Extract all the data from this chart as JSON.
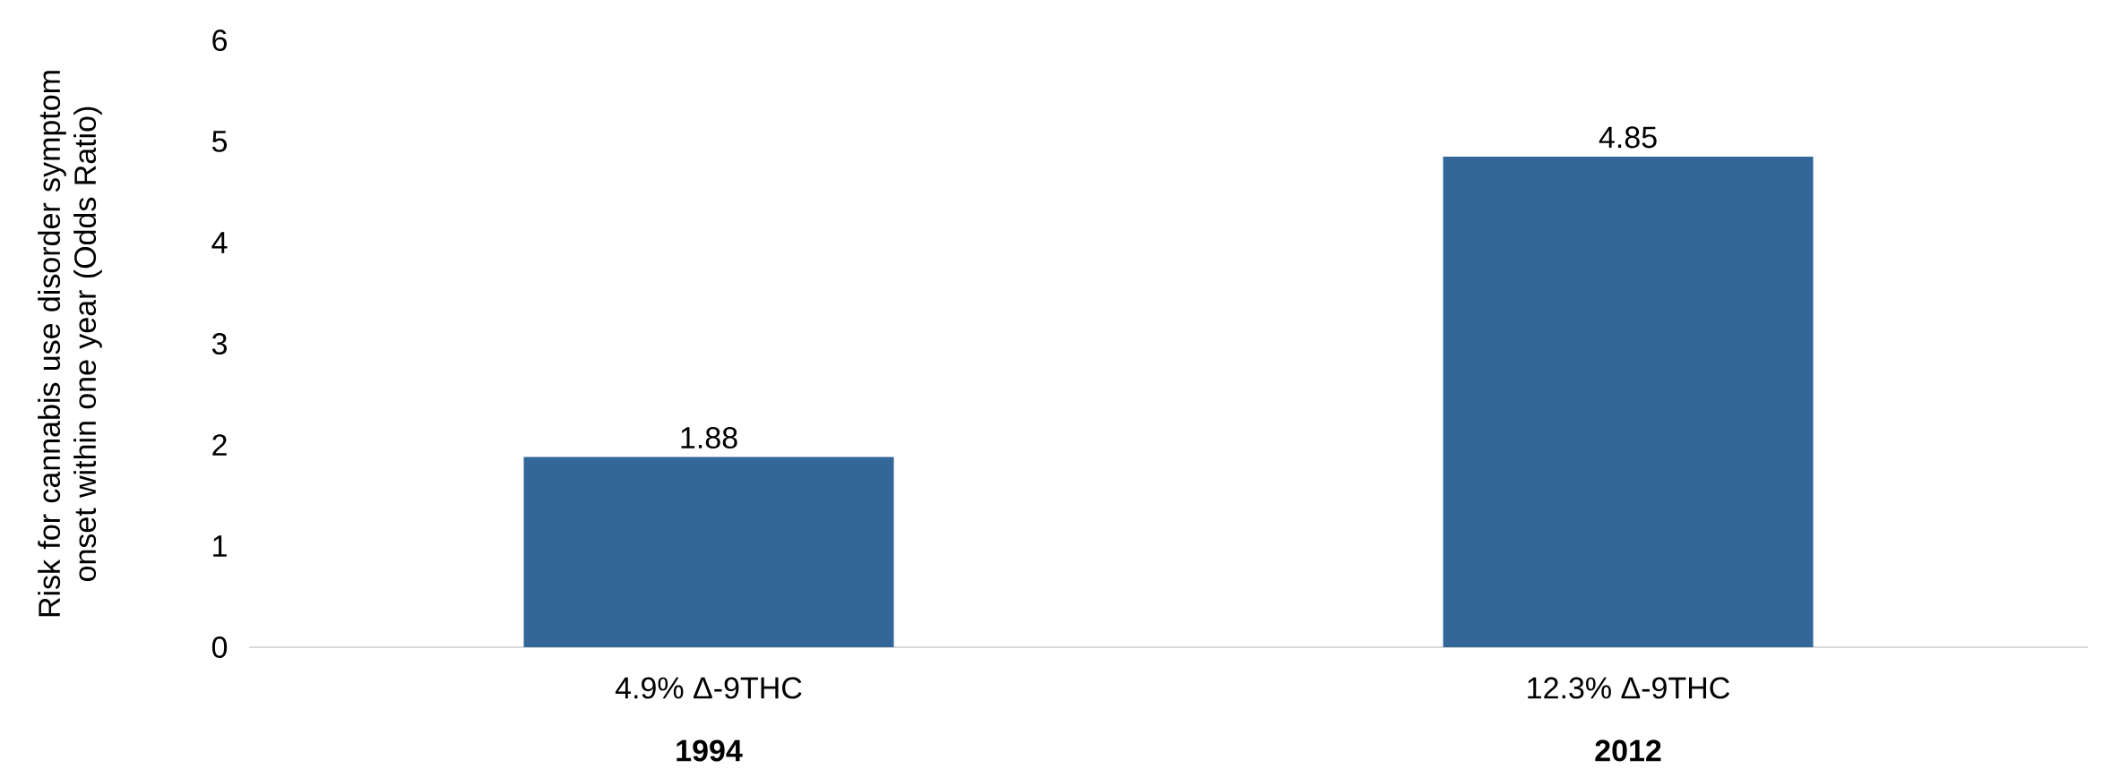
{
  "chart_data": {
    "type": "bar",
    "ylabel": "Risk for cannabis use disorder symptom onset within one year (Odds Ratio)",
    "categories": [
      "4.9% Δ-9THC",
      "12.3% Δ-9THC"
    ],
    "values": [
      1.88,
      4.85
    ],
    "color": "#336699",
    "ylim": [
      0,
      6
    ],
    "yticks": [
      0,
      1,
      2,
      3,
      4,
      5,
      6
    ],
    "data_labels": true,
    "grid": false,
    "annotations": [
      "1994",
      "2012"
    ]
  }
}
